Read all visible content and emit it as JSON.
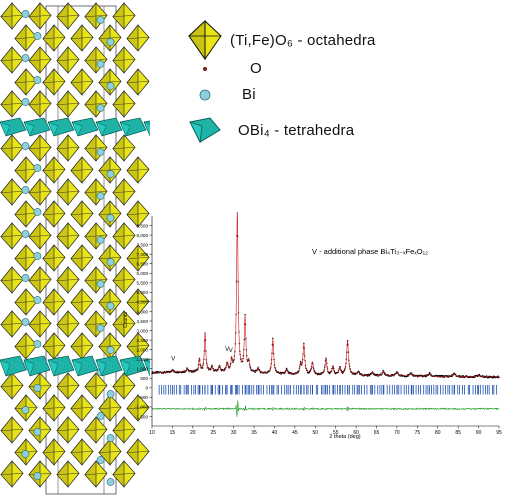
{
  "legend": {
    "octahedra_label": "(Ti,Fe)O₆ - octahedra",
    "oxygen_label": "O",
    "bismuth_label": "Bi",
    "tetrahedra_label": "OBi₄ - tetrahedra"
  },
  "colors": {
    "octahedra": "#e8e417",
    "octahedra_dark": "#8c8a12",
    "bi_atom": "#8ecfdb",
    "tetrahedra": "#1fb3a8",
    "observed": "#000000",
    "calculated": "#d21a1a",
    "reflections": "#1f4fb0",
    "difference": "#16951c"
  },
  "chart_data": {
    "type": "line",
    "xlabel": "2 theta (deg)",
    "ylabel": "Counts",
    "xlim": [
      10,
      95
    ],
    "ylim": [
      -2000,
      9000
    ],
    "xticks": [
      10,
      15,
      20,
      25,
      30,
      35,
      40,
      45,
      50,
      55,
      60,
      65,
      70,
      75,
      80,
      85,
      90,
      95
    ],
    "yticks": [
      -1500,
      -1000,
      -500,
      0,
      500,
      1000,
      1500,
      2000,
      2500,
      3000,
      3500,
      4000,
      4500,
      5000,
      5500,
      6000,
      6500,
      7000,
      7500,
      8000,
      8500
    ],
    "annotation": "V - additional phase Bi₄Ti₃₋ₓFeₓO₁₂",
    "marker_symbol": "V",
    "marker_positions": [
      15.2,
      28.4,
      29.3
    ],
    "background": 750,
    "peaks": [
      {
        "x": 15.0,
        "h": 150
      },
      {
        "x": 18.6,
        "h": 200
      },
      {
        "x": 21.6,
        "h": 650
      },
      {
        "x": 23.0,
        "h": 2000
      },
      {
        "x": 24.7,
        "h": 250
      },
      {
        "x": 26.5,
        "h": 300
      },
      {
        "x": 28.4,
        "h": 450
      },
      {
        "x": 29.5,
        "h": 550
      },
      {
        "x": 30.9,
        "h": 8500
      },
      {
        "x": 32.8,
        "h": 2850
      },
      {
        "x": 33.7,
        "h": 500
      },
      {
        "x": 36.0,
        "h": 250
      },
      {
        "x": 39.6,
        "h": 1800
      },
      {
        "x": 43.0,
        "h": 250
      },
      {
        "x": 46.4,
        "h": 500
      },
      {
        "x": 47.2,
        "h": 1550
      },
      {
        "x": 49.3,
        "h": 650
      },
      {
        "x": 52.6,
        "h": 850
      },
      {
        "x": 54.3,
        "h": 400
      },
      {
        "x": 56.0,
        "h": 400
      },
      {
        "x": 57.9,
        "h": 1800
      },
      {
        "x": 60.5,
        "h": 200
      },
      {
        "x": 64.0,
        "h": 200
      },
      {
        "x": 66.7,
        "h": 250
      },
      {
        "x": 70.0,
        "h": 200
      },
      {
        "x": 73.5,
        "h": 150
      },
      {
        "x": 78.0,
        "h": 150
      },
      {
        "x": 84.0,
        "h": 150
      },
      {
        "x": 90.0,
        "h": 100
      }
    ],
    "difference_offset": -1100
  }
}
